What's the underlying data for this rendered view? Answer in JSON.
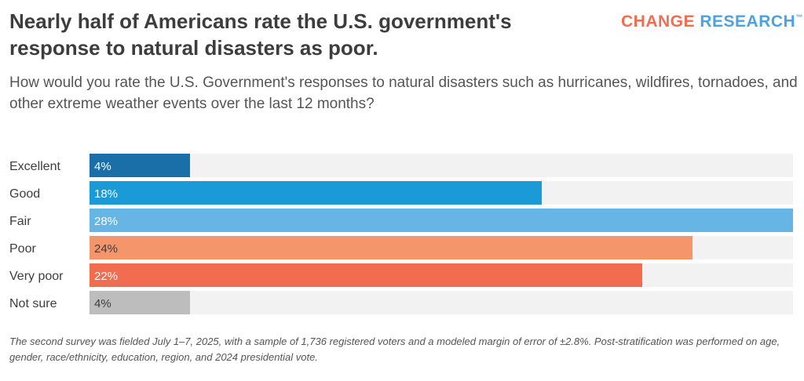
{
  "title": "Nearly half of Americans rate the U.S. government's response to natural disasters as poor.",
  "brand": {
    "part1": "CHANGE",
    "part2": "RESEARCH",
    "trademark": "™",
    "color1": "#f26d50",
    "color2": "#4aa3df"
  },
  "subtitle": "How would you rate the U.S. Government's responses to natural disasters such as hurricanes, wildfires, tornadoes, and other extreme weather events over the last 12 months?",
  "footnote": "The second survey was fielded July 1–7, 2025, with a sample of 1,736 registered voters and a modeled margin of error of ±2.8%. Post-stratification was performed on age, gender, race/ethnicity, education, region, and 2024 presidential vote.",
  "chart_data": {
    "type": "bar",
    "orientation": "horizontal",
    "title": "",
    "xlabel": "",
    "ylabel": "",
    "categories": [
      "Excellent",
      "Good",
      "Fair",
      "Poor",
      "Very poor",
      "Not sure"
    ],
    "values": [
      4,
      18,
      28,
      24,
      22,
      4
    ],
    "value_labels": [
      "4%",
      "18%",
      "28%",
      "24%",
      "22%",
      "4%"
    ],
    "xlim": [
      0,
      28
    ],
    "colors": [
      "#1a6fa8",
      "#1a9bd7",
      "#66b5e5",
      "#f5956b",
      "#f26d50",
      "#bdbdbd"
    ],
    "label_colors": [
      "#ffffff",
      "#ffffff",
      "#ffffff",
      "#3d3d3d",
      "#ffffff",
      "#3d3d3d"
    ],
    "track_color": "#f2f2f2",
    "grid": false,
    "legend": "none"
  }
}
